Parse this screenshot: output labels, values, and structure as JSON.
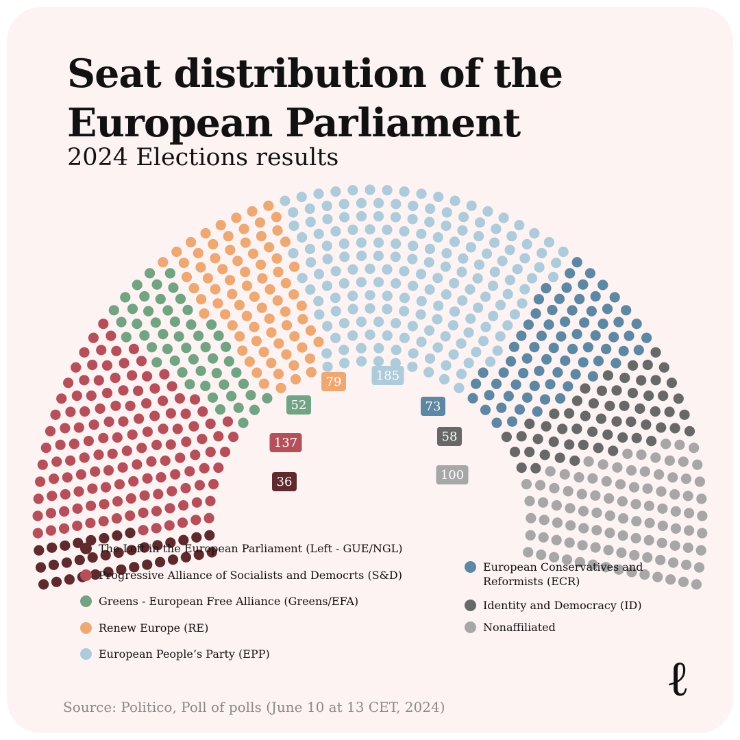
{
  "title_line1": "Seat distribution of the",
  "title_line2": "European Parliament",
  "subtitle": "2024 Elections results",
  "source": "Source: Politico, Poll of polls (June 10 at 13 CET, 2024)",
  "logo": "ℓ",
  "chart_data": {
    "type": "parliament",
    "title": "Seat distribution of the European Parliament",
    "subtitle": "2024 Elections results",
    "total_seats": 720,
    "parties": [
      {
        "name": "The Left in the European Parliament (Left - GUE/NGL)",
        "short": "Left",
        "seats": 36,
        "color": "#5e2a2e"
      },
      {
        "name": "Progressive Alliance of Socialists and Democrts (S&D)",
        "short": "S&D",
        "seats": 137,
        "color": "#b5505a"
      },
      {
        "name": "Greens - European Free Alliance (Greens/EFA)",
        "short": "Greens/EFA",
        "seats": 52,
        "color": "#72a484"
      },
      {
        "name": "Renew Europe (RE)",
        "short": "RE",
        "seats": 79,
        "color": "#eda873"
      },
      {
        "name": "European People’s Party (EPP)",
        "short": "EPP",
        "seats": 185,
        "color": "#aecbdb"
      },
      {
        "name": "European Conservatives and Reformists (ECR)",
        "short": "ECR",
        "seats": 73,
        "color": "#5d87a2"
      },
      {
        "name": "Identity and Democracy (ID)",
        "short": "ID",
        "seats": 58,
        "color": "#666968"
      },
      {
        "name": "Nonaffiliated",
        "short": "NI",
        "seats": 100,
        "color": "#a7a7a7"
      }
    ]
  },
  "legend": {
    "left": [
      {
        "label": "The Left in the European Parliament (Left - GUE/NGL)",
        "color": "#5e2a2e"
      },
      {
        "label": "Progressive Alliance of Socialists and Democrts (S&D)",
        "color": "#b5505a"
      },
      {
        "label": "Greens - European Free Alliance (Greens/EFA)",
        "color": "#72a484"
      },
      {
        "label": "Renew Europe (RE)",
        "color": "#eda873"
      },
      {
        "label": "European People’s Party (EPP)",
        "color": "#aecbdb"
      }
    ],
    "right": [
      {
        "label": "European Conservatives and\nReformists (ECR)",
        "color": "#5d87a2"
      },
      {
        "label": "Identity and Democracy (ID)",
        "color": "#666968"
      },
      {
        "label": "Nonaffiliated",
        "color": "#a7a7a7"
      }
    ]
  }
}
